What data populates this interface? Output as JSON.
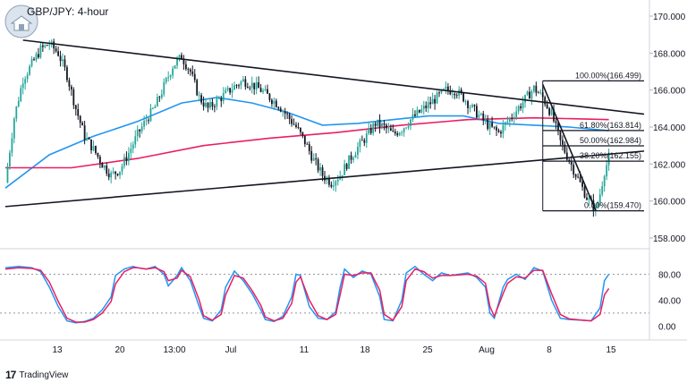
{
  "header": {
    "symbol": "GBP/JPY",
    "timeframe": "4-hour",
    "title": "GBP/JPY: 4-hour"
  },
  "footer": {
    "brand": "TradingView"
  },
  "colors": {
    "candle_up": "#26a69a",
    "candle_down": "#131722",
    "ema_blue": "#2196f3",
    "ema_magenta": "#e91e63",
    "stoch_k": "#2196f3",
    "stoch_d": "#e91e63",
    "trendline": "#131722",
    "fib": "#131722"
  },
  "chart_data": [
    {
      "type": "candlestick",
      "title": "GBP/JPY: 4-hour",
      "y_axis": {
        "ticks": [
          "170.000",
          "168.000",
          "166.000",
          "164.000",
          "162.000",
          "160.000",
          "158.000"
        ],
        "ylim": [
          158.0,
          170.0
        ],
        "position": "right"
      },
      "x_axis": {
        "ticks": [
          "13",
          "20",
          "13:00",
          "Jul",
          "11",
          "18",
          "25",
          "Aug",
          "8",
          "15"
        ]
      },
      "close_path": [
        [
          0,
          161.0
        ],
        [
          4,
          164.5
        ],
        [
          8,
          166.6
        ],
        [
          12,
          167.4
        ],
        [
          16,
          168.2
        ],
        [
          20,
          168.5
        ],
        [
          24,
          168.0
        ],
        [
          28,
          166.8
        ],
        [
          32,
          165.0
        ],
        [
          36,
          163.5
        ],
        [
          40,
          162.8
        ],
        [
          44,
          162.0
        ],
        [
          48,
          161.4
        ],
        [
          52,
          161.7
        ],
        [
          56,
          162.6
        ],
        [
          60,
          163.6
        ],
        [
          64,
          164.4
        ],
        [
          68,
          165.1
        ],
        [
          72,
          166.2
        ],
        [
          76,
          167.3
        ],
        [
          80,
          167.8
        ],
        [
          84,
          167.0
        ],
        [
          88,
          165.6
        ],
        [
          92,
          165.0
        ],
        [
          96,
          165.4
        ],
        [
          100,
          165.8
        ],
        [
          104,
          166.2
        ],
        [
          108,
          166.5
        ],
        [
          112,
          166.3
        ],
        [
          116,
          166.0
        ],
        [
          120,
          165.6
        ],
        [
          124,
          165.2
        ],
        [
          128,
          164.6
        ],
        [
          132,
          164.0
        ],
        [
          136,
          163.2
        ],
        [
          140,
          162.2
        ],
        [
          144,
          161.4
        ],
        [
          148,
          161.0
        ],
        [
          152,
          161.4
        ],
        [
          156,
          162.2
        ],
        [
          160,
          162.9
        ],
        [
          164,
          163.5
        ],
        [
          168,
          164.2
        ],
        [
          172,
          164.0
        ],
        [
          176,
          163.6
        ],
        [
          180,
          163.9
        ],
        [
          184,
          164.4
        ],
        [
          188,
          164.8
        ],
        [
          192,
          165.2
        ],
        [
          196,
          165.6
        ],
        [
          200,
          166.0
        ],
        [
          204,
          166.0
        ],
        [
          208,
          165.6
        ],
        [
          212,
          165.0
        ],
        [
          216,
          164.5
        ],
        [
          220,
          164.0
        ],
        [
          224,
          163.7
        ],
        [
          228,
          164.3
        ],
        [
          232,
          164.9
        ],
        [
          236,
          165.5
        ],
        [
          240,
          166.1
        ],
        [
          244,
          165.6
        ],
        [
          248,
          164.7
        ],
        [
          252,
          163.2
        ],
        [
          256,
          162.2
        ],
        [
          260,
          161.2
        ],
        [
          264,
          160.2
        ],
        [
          268,
          159.5
        ],
        [
          270,
          160.4
        ],
        [
          272,
          161.6
        ],
        [
          274,
          162.3
        ]
      ],
      "indicators": [
        {
          "name": "EMA blue",
          "color": "#2196f3",
          "path": [
            [
              0,
              160.7
            ],
            [
              20,
              162.5
            ],
            [
              40,
              163.5
            ],
            [
              60,
              164.3
            ],
            [
              80,
              165.3
            ],
            [
              96,
              165.6
            ],
            [
              112,
              165.3
            ],
            [
              128,
              164.8
            ],
            [
              144,
              164.1
            ],
            [
              160,
              164.2
            ],
            [
              176,
              164.4
            ],
            [
              192,
              164.6
            ],
            [
              208,
              164.6
            ],
            [
              224,
              164.2
            ],
            [
              240,
              164.1
            ],
            [
              256,
              164.0
            ],
            [
              274,
              163.8
            ]
          ]
        },
        {
          "name": "EMA magenta",
          "color": "#e91e63",
          "path": [
            [
              0,
              161.8
            ],
            [
              30,
              161.8
            ],
            [
              60,
              162.3
            ],
            [
              90,
              163.0
            ],
            [
              120,
              163.4
            ],
            [
              150,
              163.7
            ],
            [
              180,
              164.1
            ],
            [
              210,
              164.4
            ],
            [
              240,
              164.5
            ],
            [
              274,
              164.4
            ]
          ]
        }
      ],
      "trendlines": [
        {
          "from": [
            8,
            168.7
          ],
          "to": [
            290,
            164.7
          ]
        },
        {
          "from": [
            0,
            159.7
          ],
          "to": [
            290,
            162.7
          ]
        },
        {
          "from": [
            244,
            166.3
          ],
          "to": [
            268,
            159.5
          ]
        }
      ],
      "fibonacci": [
        {
          "label": "100.00%(166.499)",
          "value": 166.499
        },
        {
          "label": "61.80%(163.814)",
          "value": 163.814
        },
        {
          "label": "50.00%(162.984)",
          "value": 162.984
        },
        {
          "label": "38.20%(162.155)",
          "value": 162.155
        },
        {
          "label": "0.00%(159.470)",
          "value": 159.47
        }
      ],
      "fib_x_range": [
        244,
        290
      ]
    },
    {
      "type": "line",
      "title": "",
      "y_axis": {
        "ticks": [
          "80.00",
          "40.00",
          "0.00"
        ],
        "ylim": [
          -5,
          100
        ],
        "levels": [
          80,
          20
        ]
      },
      "series": [
        {
          "color": "#2196f3",
          "path": [
            [
              0,
              90
            ],
            [
              6,
              92
            ],
            [
              12,
              90
            ],
            [
              16,
              84
            ],
            [
              20,
              60
            ],
            [
              24,
              30
            ],
            [
              28,
              8
            ],
            [
              32,
              5
            ],
            [
              36,
              7
            ],
            [
              40,
              12
            ],
            [
              44,
              25
            ],
            [
              48,
              45
            ],
            [
              50,
              78
            ],
            [
              54,
              88
            ],
            [
              58,
              92
            ],
            [
              60,
              90
            ],
            [
              64,
              88
            ],
            [
              68,
              92
            ],
            [
              72,
              80
            ],
            [
              74,
              62
            ],
            [
              78,
              78
            ],
            [
              80,
              90
            ],
            [
              84,
              70
            ],
            [
              88,
              30
            ],
            [
              90,
              12
            ],
            [
              94,
              8
            ],
            [
              98,
              25
            ],
            [
              100,
              60
            ],
            [
              104,
              85
            ],
            [
              108,
              70
            ],
            [
              112,
              50
            ],
            [
              116,
              25
            ],
            [
              118,
              10
            ],
            [
              122,
              7
            ],
            [
              126,
              15
            ],
            [
              130,
              45
            ],
            [
              132,
              80
            ],
            [
              134,
              78
            ],
            [
              138,
              30
            ],
            [
              142,
              12
            ],
            [
              146,
              10
            ],
            [
              150,
              22
            ],
            [
              152,
              60
            ],
            [
              154,
              88
            ],
            [
              158,
              75
            ],
            [
              162,
              85
            ],
            [
              166,
              80
            ],
            [
              170,
              45
            ],
            [
              172,
              10
            ],
            [
              176,
              8
            ],
            [
              180,
              40
            ],
            [
              182,
              82
            ],
            [
              186,
              92
            ],
            [
              190,
              80
            ],
            [
              194,
              70
            ],
            [
              198,
              82
            ],
            [
              202,
              78
            ],
            [
              206,
              80
            ],
            [
              210,
              82
            ],
            [
              214,
              75
            ],
            [
              218,
              60
            ],
            [
              220,
              20
            ],
            [
              222,
              12
            ],
            [
              226,
              60
            ],
            [
              228,
              72
            ],
            [
              232,
              80
            ],
            [
              236,
              72
            ],
            [
              240,
              90
            ],
            [
              244,
              85
            ],
            [
              248,
              40
            ],
            [
              252,
              12
            ],
            [
              256,
              10
            ],
            [
              262,
              9
            ],
            [
              266,
              8
            ],
            [
              270,
              28
            ],
            [
              272,
              70
            ],
            [
              274,
              80
            ]
          ]
        },
        {
          "color": "#e91e63",
          "path": [
            [
              0,
              88
            ],
            [
              6,
              90
            ],
            [
              12,
              89
            ],
            [
              16,
              86
            ],
            [
              20,
              68
            ],
            [
              24,
              38
            ],
            [
              28,
              12
            ],
            [
              32,
              6
            ],
            [
              36,
              6
            ],
            [
              40,
              10
            ],
            [
              44,
              20
            ],
            [
              48,
              38
            ],
            [
              50,
              65
            ],
            [
              54,
              84
            ],
            [
              58,
              90
            ],
            [
              60,
              90
            ],
            [
              64,
              88
            ],
            [
              68,
              90
            ],
            [
              72,
              84
            ],
            [
              74,
              70
            ],
            [
              78,
              74
            ],
            [
              80,
              86
            ],
            [
              84,
              76
            ],
            [
              88,
              40
            ],
            [
              90,
              16
            ],
            [
              94,
              9
            ],
            [
              98,
              18
            ],
            [
              100,
              48
            ],
            [
              104,
              78
            ],
            [
              108,
              74
            ],
            [
              112,
              55
            ],
            [
              116,
              32
            ],
            [
              118,
              14
            ],
            [
              122,
              8
            ],
            [
              126,
              12
            ],
            [
              130,
              35
            ],
            [
              132,
              68
            ],
            [
              134,
              76
            ],
            [
              138,
              40
            ],
            [
              142,
              16
            ],
            [
              146,
              10
            ],
            [
              150,
              18
            ],
            [
              152,
              48
            ],
            [
              154,
              80
            ],
            [
              158,
              78
            ],
            [
              162,
              82
            ],
            [
              166,
              82
            ],
            [
              170,
              55
            ],
            [
              172,
              18
            ],
            [
              176,
              9
            ],
            [
              180,
              30
            ],
            [
              182,
              70
            ],
            [
              186,
              88
            ],
            [
              190,
              84
            ],
            [
              194,
              74
            ],
            [
              198,
              78
            ],
            [
              202,
              78
            ],
            [
              206,
              79
            ],
            [
              210,
              80
            ],
            [
              214,
              77
            ],
            [
              218,
              66
            ],
            [
              220,
              30
            ],
            [
              222,
              15
            ],
            [
              226,
              50
            ],
            [
              228,
              66
            ],
            [
              232,
              76
            ],
            [
              236,
              74
            ],
            [
              240,
              86
            ],
            [
              244,
              86
            ],
            [
              248,
              50
            ],
            [
              252,
              18
            ],
            [
              256,
              11
            ],
            [
              262,
              9
            ],
            [
              266,
              8
            ],
            [
              270,
              18
            ],
            [
              272,
              48
            ],
            [
              274,
              58
            ]
          ]
        }
      ]
    }
  ]
}
